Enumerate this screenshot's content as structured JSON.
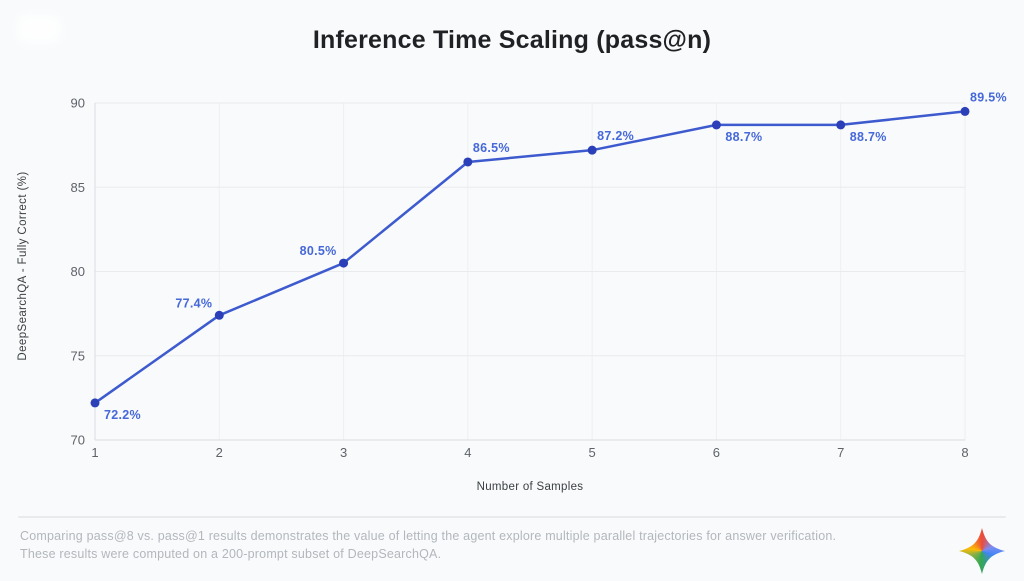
{
  "page": {
    "background": "#f8fafb"
  },
  "chart_data": {
    "type": "line",
    "title": "Inference Time Scaling (pass@n)",
    "xlabel": "Number of Samples",
    "ylabel": "DeepSearchQA - Fully Correct (%)",
    "x": [
      1,
      2,
      3,
      4,
      5,
      6,
      7,
      8
    ],
    "values": [
      72.2,
      77.4,
      80.5,
      86.5,
      87.2,
      88.7,
      88.7,
      89.5
    ],
    "point_labels": [
      "72.2%",
      "77.4%",
      "80.5%",
      "86.5%",
      "87.2%",
      "88.7%",
      "88.7%",
      "89.5%"
    ],
    "label_positions": [
      "below-right",
      "above-left",
      "above-left",
      "above-right",
      "above-right",
      "below-right",
      "below-right",
      "above-right"
    ],
    "xlim": [
      1,
      8
    ],
    "ylim": [
      70,
      90
    ],
    "xticks": [
      1,
      2,
      3,
      4,
      5,
      6,
      7,
      8
    ],
    "yticks": [
      70,
      75,
      80,
      85,
      90
    ],
    "grid": true,
    "legend": false,
    "colors": {
      "line": "#3d5ace",
      "marker": "#2b40b8",
      "point_label": "#4668d9",
      "grid_h": "#e9ebee",
      "grid_v": "#edeff2",
      "axis": "#dadce0",
      "tick": "#5f6368",
      "title": "#1f2124",
      "axis_title": "#3c4043"
    }
  },
  "footer": {
    "line1": "Comparing pass@8 vs. pass@1 results demonstrates the value of letting the agent explore multiple parallel trajectories for answer verification.",
    "line2": "These results were computed on a 200-prompt subset of DeepSearchQA.",
    "logo": "gemini-sparkle"
  }
}
